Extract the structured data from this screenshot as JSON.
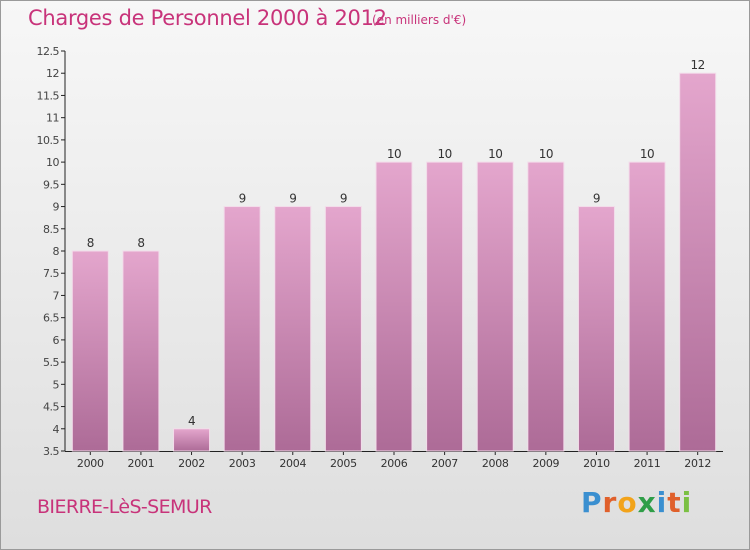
{
  "header": {
    "title": "Charges de Personnel 2000 à 2012",
    "subtitle": "(en milliers d'€)"
  },
  "footer": {
    "commune": "BIERRE-LèS-SEMUR",
    "brand_letters": [
      "P",
      "r",
      "o",
      "x",
      "i",
      "t",
      "i"
    ]
  },
  "colors": {
    "title": "#c8337a",
    "bar_top": "#e4a6cd",
    "bar_bottom": "#ad6b97",
    "brand": [
      "#3a8fd0",
      "#e0602b",
      "#f2a31a",
      "#2f9e48",
      "#3a8fd0",
      "#e0602b",
      "#7bc043"
    ]
  },
  "chart_data": {
    "type": "bar",
    "categories": [
      "2000",
      "2001",
      "2002",
      "2003",
      "2004",
      "2005",
      "2006",
      "2007",
      "2008",
      "2009",
      "2010",
      "2011",
      "2012"
    ],
    "values": [
      8,
      8,
      4,
      9,
      9,
      9,
      10,
      10,
      10,
      10,
      9,
      10,
      12
    ],
    "data_labels": [
      "8",
      "8",
      "4",
      "9",
      "9",
      "9",
      "10",
      "10",
      "10",
      "10",
      "9",
      "10",
      "12"
    ],
    "yticks": [
      "3.5",
      "4",
      "4.5",
      "5",
      "5.5",
      "6",
      "6.5",
      "7",
      "7.5",
      "8",
      "8.5",
      "9",
      "9.5",
      "10",
      "10.5",
      "11",
      "11.5",
      "12",
      "12.5"
    ],
    "ylim": [
      3.5,
      12.5
    ],
    "grid": false,
    "title": "Charges de Personnel 2000 à 2012",
    "xlabel": "",
    "ylabel": ""
  }
}
